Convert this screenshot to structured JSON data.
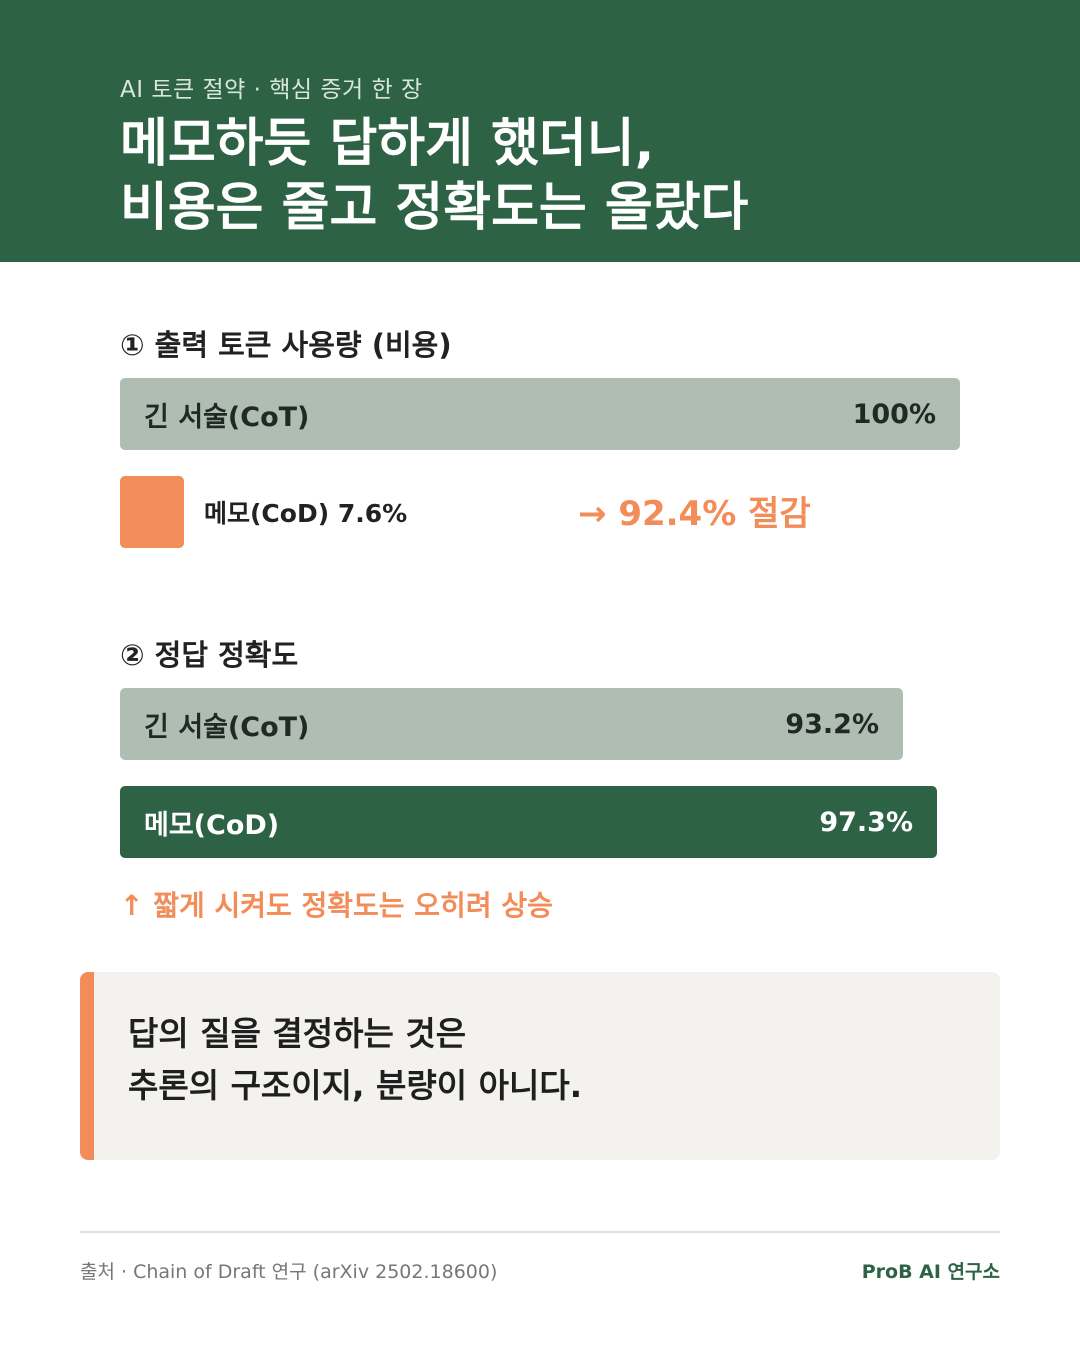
{
  "header": {
    "kicker": "AI 토큰 절약 · 핵심 증거 한 장",
    "title_line1": "메모하듯 답하게 했더니,",
    "title_line2": "비용은 줄고 정확도는 올랐다"
  },
  "colors": {
    "primary_green": "#2d6244",
    "cot_gray": "#afbdb3",
    "accent_orange": "#f28c58",
    "quote_bg": "#f3f2ee"
  },
  "chart_data": [
    {
      "type": "bar",
      "orientation": "horizontal",
      "title": "① 출력 토큰 사용량 (비용)",
      "categories": [
        "긴 서술(CoT)",
        "메모(CoD) 7.6%"
      ],
      "values": [
        100,
        7.6
      ],
      "value_labels": [
        "100%",
        ""
      ],
      "unit": "%",
      "xlim": [
        0,
        100
      ],
      "annotation": "→ 92.4% 절감"
    },
    {
      "type": "bar",
      "orientation": "horizontal",
      "title": "② 정답 정확도",
      "categories": [
        "긴 서술(CoT)",
        "메모(CoD)"
      ],
      "values": [
        93.2,
        97.3
      ],
      "value_labels": [
        "93.2%",
        "97.3%"
      ],
      "unit": "%",
      "annotation": "↑ 짧게 시켜도 정확도는 오히려 상승"
    }
  ],
  "quote": {
    "line1": "답의 질을 결정하는 것은",
    "line2": "추론의 구조이지, 분량이 아니다."
  },
  "footer": {
    "source": "출처 · Chain of Draft 연구 (arXiv 2502.18600)",
    "brand": "ProB AI 연구소"
  }
}
